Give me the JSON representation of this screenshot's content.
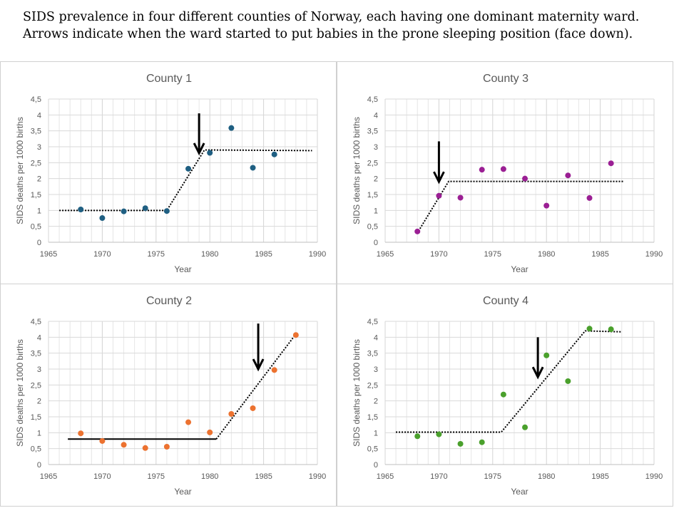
{
  "header": {
    "line1": "SIDS prevalence in four different counties of Norway, each having one dominant maternity ward.",
    "line2": "Arrows indicate when the ward started to put babies in the prone sleeping position (face down)."
  },
  "chart_data": [
    {
      "type": "scatter",
      "title": "County 1",
      "xlabel": "Year",
      "ylabel": "SIDS deaths per 1000 births",
      "xlim": [
        1965,
        1990
      ],
      "ylim": [
        0,
        4.5
      ],
      "xticks": [
        "1965",
        "1970",
        "1975",
        "1980",
        "1985",
        "1990"
      ],
      "yticks": [
        "0",
        "0,5",
        "1",
        "1,5",
        "2",
        "2,5",
        "3",
        "3,5",
        "4",
        "4,5"
      ],
      "grid": true,
      "color": "#1f5f82",
      "x": [
        1968,
        1970,
        1972,
        1974,
        1976,
        1978,
        1980,
        1982,
        1984,
        1986
      ],
      "y": [
        1.03,
        0.76,
        0.97,
        1.07,
        0.98,
        2.31,
        2.81,
        3.59,
        2.34,
        2.76
      ],
      "trend": [
        {
          "style": "dotted",
          "points": [
            [
              1966,
              1.0
            ],
            [
              1976,
              1.0
            ],
            [
              1979.5,
              2.9
            ],
            [
              1989.5,
              2.88
            ]
          ]
        }
      ],
      "arrow": {
        "x": 1979,
        "y_from": 4.05,
        "y_to": 2.8
      }
    },
    {
      "type": "scatter",
      "title": "County 3",
      "xlabel": "Year",
      "ylabel": "SIDS deaths per 1000 births",
      "xlim": [
        1965,
        1990
      ],
      "ylim": [
        0,
        4.5
      ],
      "xticks": [
        "1965",
        "1970",
        "1975",
        "1980",
        "1985",
        "1990"
      ],
      "yticks": [
        "0",
        "0,5",
        "1",
        "1,5",
        "2",
        "2,5",
        "3",
        "3,5",
        "4",
        "4,5"
      ],
      "grid": true,
      "color": "#9b1f94",
      "x": [
        1968,
        1970,
        1972,
        1974,
        1976,
        1978,
        1980,
        1982,
        1984,
        1986
      ],
      "y": [
        0.34,
        1.46,
        1.4,
        2.28,
        2.3,
        2.0,
        1.15,
        2.1,
        1.39,
        2.48
      ],
      "trend": [
        {
          "style": "dotted",
          "points": [
            [
              1968.1,
              0.35
            ],
            [
              1970.9,
              1.91
            ],
            [
              1987.2,
              1.91
            ]
          ]
        }
      ],
      "arrow": {
        "x": 1970,
        "y_from": 3.17,
        "y_to": 1.9
      }
    },
    {
      "type": "scatter",
      "title": "County 2",
      "xlabel": "Year",
      "ylabel": "SIDS deaths per 1000 births",
      "xlim": [
        1965,
        1990
      ],
      "ylim": [
        0,
        4.5
      ],
      "xticks": [
        "1965",
        "1970",
        "1975",
        "1980",
        "1985",
        "1990"
      ],
      "yticks": [
        "0",
        "0,5",
        "1",
        "1,5",
        "2",
        "2,5",
        "3",
        "3,5",
        "4",
        "4,5"
      ],
      "grid": true,
      "color": "#ec7230",
      "x": [
        1968,
        1970,
        1972,
        1974,
        1976,
        1978,
        1980,
        1982,
        1984,
        1986,
        1988
      ],
      "y": [
        0.98,
        0.74,
        0.62,
        0.52,
        0.56,
        1.33,
        1.01,
        1.59,
        1.77,
        2.97,
        4.07
      ],
      "trend": [
        {
          "style": "solid",
          "points": [
            [
              1966.8,
              0.8
            ],
            [
              1980.6,
              0.8
            ]
          ]
        },
        {
          "style": "dotted",
          "points": [
            [
              1980.6,
              0.8
            ],
            [
              1988,
              4.1
            ]
          ]
        }
      ],
      "arrow": {
        "x": 1984.5,
        "y_from": 4.43,
        "y_to": 3.0
      }
    },
    {
      "type": "scatter",
      "title": "County 4",
      "xlabel": "Year",
      "ylabel": "SIDS deaths per 1000 births",
      "xlim": [
        1965,
        1990
      ],
      "ylim": [
        0,
        4.5
      ],
      "xticks": [
        "1965",
        "1970",
        "1975",
        "1980",
        "1985",
        "1990"
      ],
      "yticks": [
        "0",
        "0,5",
        "1",
        "1,5",
        "2",
        "2,5",
        "3",
        "3,5",
        "4",
        "4,5"
      ],
      "grid": true,
      "color": "#4aa02c",
      "x": [
        1968,
        1970,
        1972,
        1974,
        1976,
        1978,
        1980,
        1982,
        1984,
        1986
      ],
      "y": [
        0.89,
        0.95,
        0.65,
        0.7,
        2.2,
        1.17,
        3.43,
        2.62,
        4.27,
        4.25
      ],
      "trend": [
        {
          "style": "dotted",
          "points": [
            [
              1966,
              1.02
            ],
            [
              1975.8,
              1.02
            ],
            [
              1983.6,
              4.2
            ],
            [
              1987,
              4.17
            ]
          ]
        }
      ],
      "arrow": {
        "x": 1979.2,
        "y_from": 4.0,
        "y_to": 2.75
      }
    }
  ]
}
